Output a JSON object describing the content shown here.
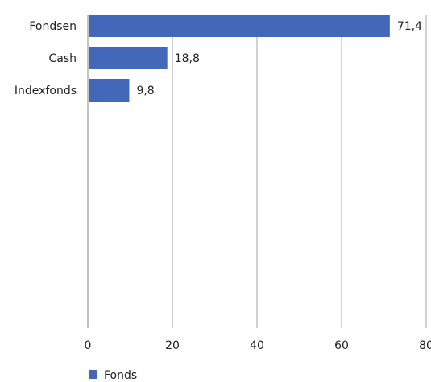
{
  "chart_data": {
    "type": "bar",
    "orientation": "horizontal",
    "title": "",
    "xlabel": "",
    "ylabel": "",
    "categories": [
      "Fondsen",
      "Cash",
      "Indexfonds"
    ],
    "series": [
      {
        "name": "Fonds",
        "values": [
          71.4,
          18.8,
          9.8
        ],
        "color": "#4468b8"
      }
    ],
    "data_labels": [
      "71,4",
      "18,8",
      "9,8"
    ],
    "xlim": [
      0,
      80
    ],
    "xticks": [
      0,
      20,
      40,
      60,
      80
    ],
    "grid": true,
    "legend_position": "bottom-left"
  }
}
